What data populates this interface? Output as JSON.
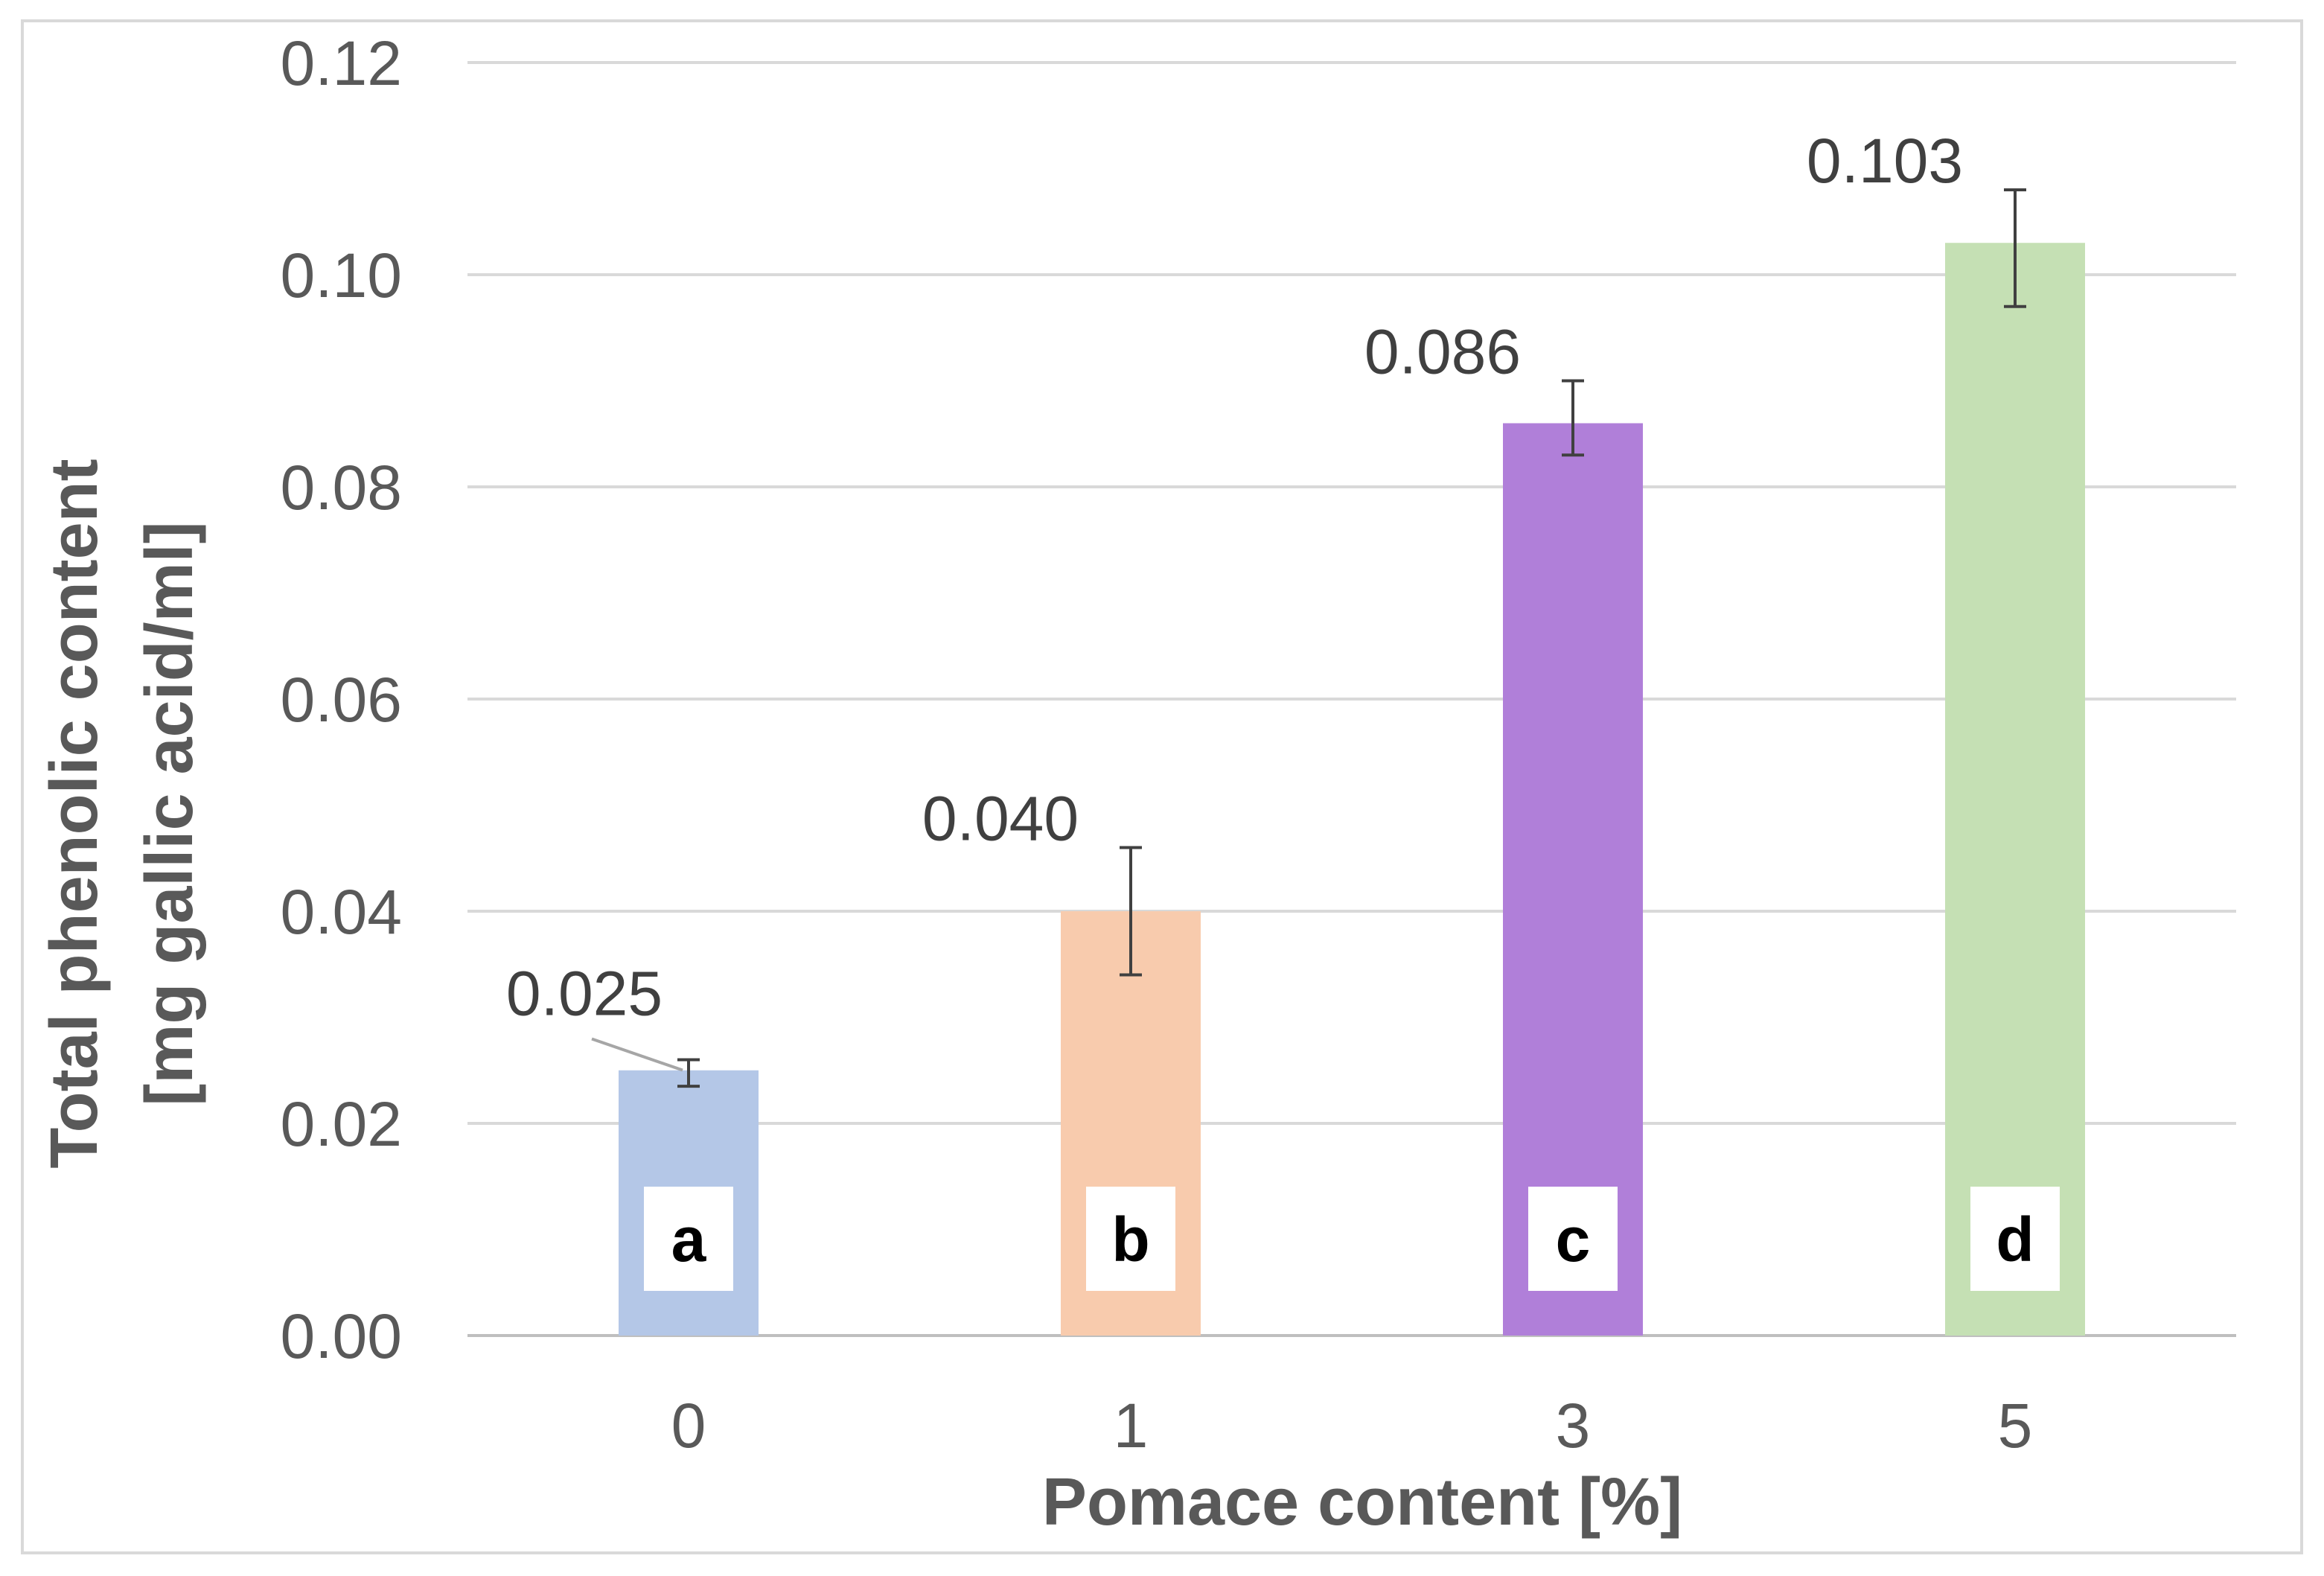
{
  "chart_data": {
    "type": "bar",
    "categories": [
      "0",
      "1",
      "3",
      "5"
    ],
    "values": [
      0.025,
      0.04,
      0.086,
      0.103
    ],
    "data_labels": [
      "0.025",
      "0.040",
      "0.086",
      "0.103"
    ],
    "error_bars": [
      {
        "low": 0.0235,
        "high": 0.026
      },
      {
        "low": 0.034,
        "high": 0.046
      },
      {
        "low": 0.083,
        "high": 0.09
      },
      {
        "low": 0.097,
        "high": 0.108
      }
    ],
    "significance_letters": [
      "a",
      "b",
      "c",
      "d"
    ],
    "bar_colors": [
      "#b4c7e7",
      "#f8cbad",
      "#b07fd9",
      "#c5e0b4"
    ],
    "title": "",
    "xlabel": "Pomace content [%]",
    "ylabel_lines": [
      "Total phenolic content",
      "[mg gallic acid/ml]"
    ],
    "ylim": [
      0,
      0.12
    ],
    "yticks": [
      "0.00",
      "0.02",
      "0.04",
      "0.06",
      "0.08",
      "0.10",
      "0.12"
    ],
    "grid": true,
    "legend": "none"
  }
}
